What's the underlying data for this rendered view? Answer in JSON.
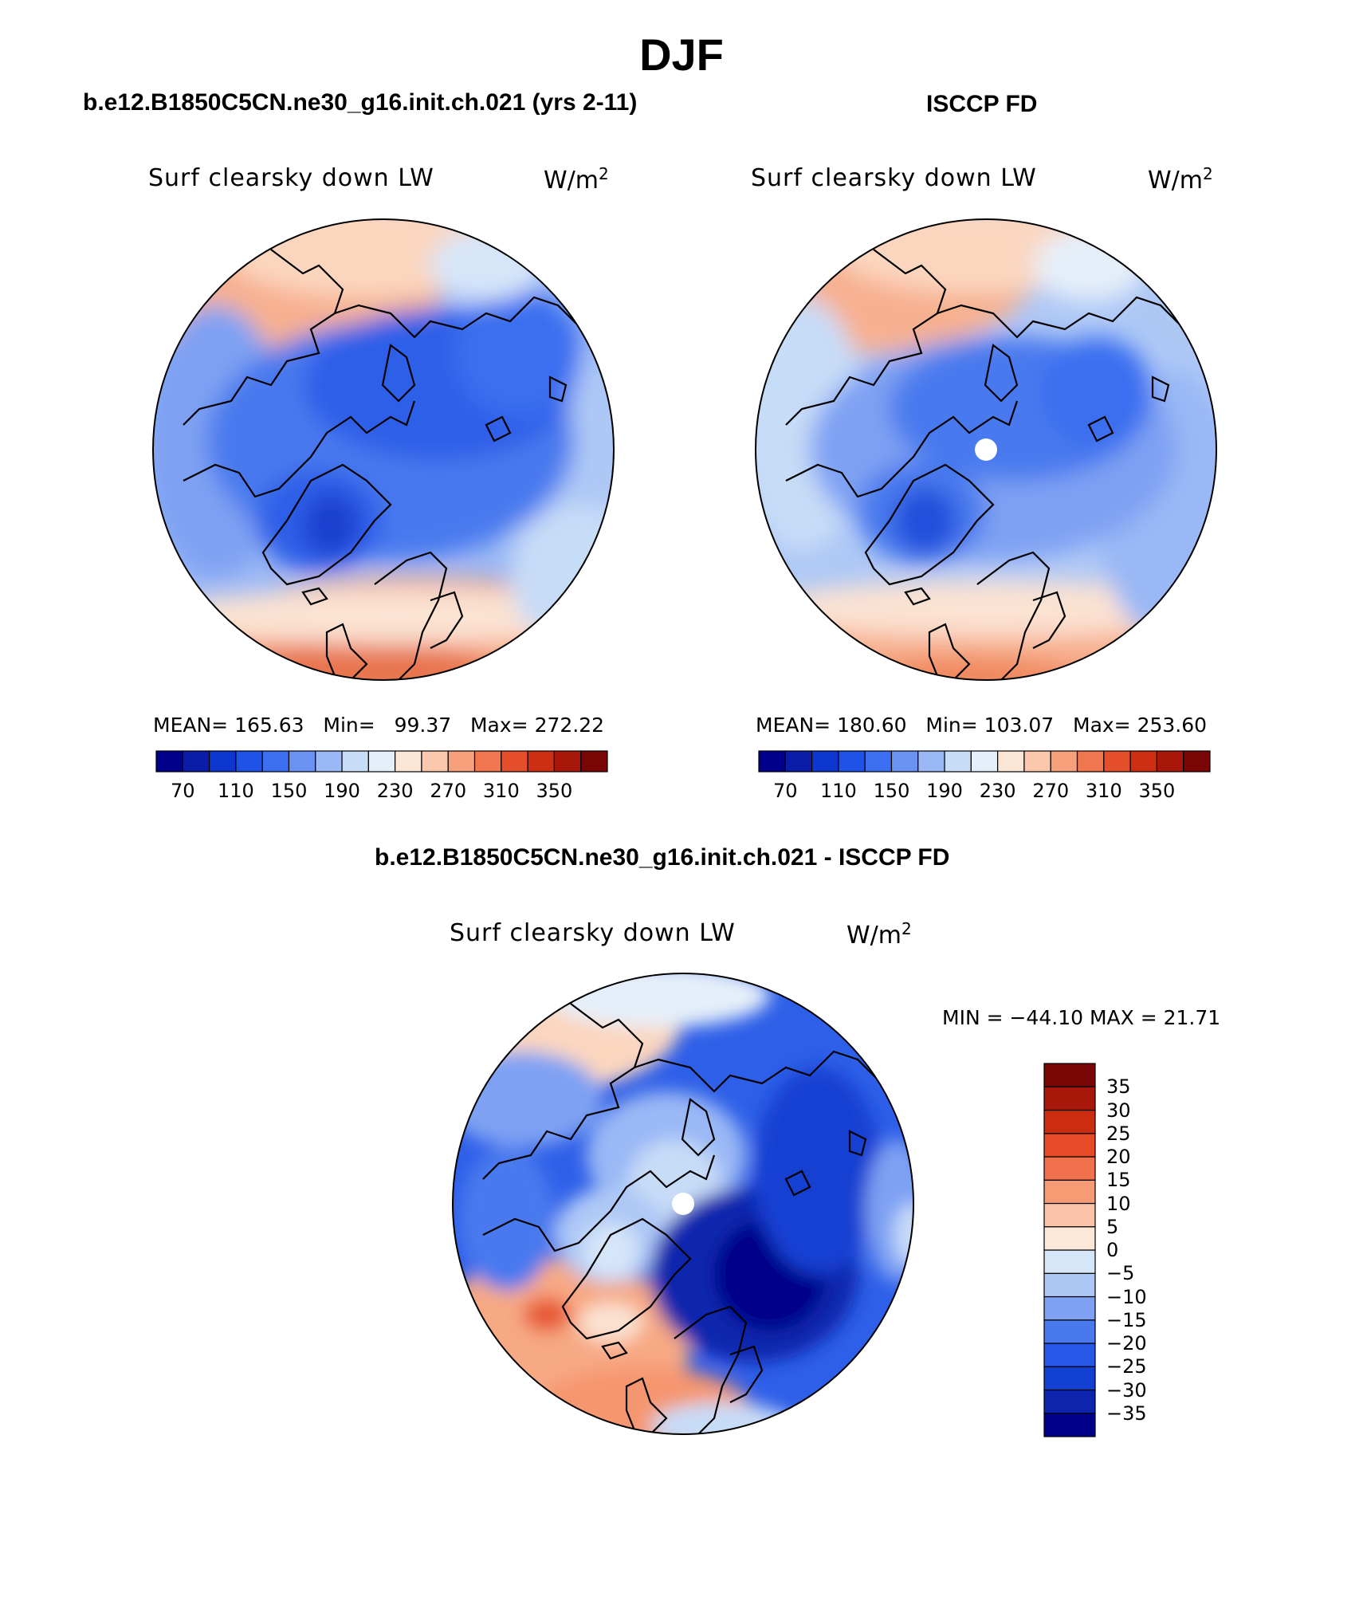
{
  "figure": {
    "season": "DJF"
  },
  "panels": {
    "model": {
      "case_title": "b.e12.B1850C5CN.ne30_g16.init.ch.021 (yrs 2-11)",
      "variable": "Surf clearsky down LW",
      "units_base": "W/m",
      "units_exp": "2",
      "mean_label": "MEAN=",
      "mean_value": "165.63",
      "min_label": "Min=",
      "min_value": "99.37",
      "max_label": "Max=",
      "max_value": "272.22"
    },
    "obs": {
      "case_title": "ISCCP FD",
      "variable": "Surf clearsky down LW",
      "units_base": "W/m",
      "units_exp": "2",
      "mean_label": "MEAN=",
      "mean_value": "180.60",
      "min_label": "Min=",
      "min_value": "103.07",
      "max_label": "Max=",
      "max_value": "253.60"
    },
    "diff": {
      "case_title": "b.e12.B1850C5CN.ne30_g16.init.ch.021 - ISCCP FD",
      "variable": "Surf clearsky down LW",
      "units_base": "W/m",
      "units_exp": "2",
      "minmax_text": "MIN = −44.10 MAX =   21.71"
    }
  },
  "colorbars": {
    "abs": {
      "colors": [
        "#00008a",
        "#0a1ca8",
        "#0d36cf",
        "#1f52e6",
        "#3b6ef0",
        "#6992f2",
        "#9ab8f5",
        "#c7dcf7",
        "#e5eff9",
        "#fbe6d6",
        "#fbc7ad",
        "#f7a07c",
        "#f07650",
        "#e44e2b",
        "#cc2f12",
        "#a8170a",
        "#7a0505"
      ],
      "tick_labels": [
        "70",
        "110",
        "150",
        "190",
        "230",
        "270",
        "310",
        "350"
      ]
    },
    "diff": {
      "colors": [
        "#00008a",
        "#0d25ad",
        "#1240d2",
        "#2657e6",
        "#4a79ee",
        "#7ea1f3",
        "#aec8f6",
        "#d6e6f9",
        "#fbe8d8",
        "#fbc4a8",
        "#f79b75",
        "#f0714b",
        "#e64a27",
        "#cc2d10",
        "#a8180a",
        "#7a0505"
      ],
      "tick_labels": [
        "35",
        "30",
        "25",
        "20",
        "15",
        "10",
        "5",
        "0",
        "−5",
        "−10",
        "−15",
        "−20",
        "−25",
        "−30",
        "−35"
      ]
    }
  }
}
